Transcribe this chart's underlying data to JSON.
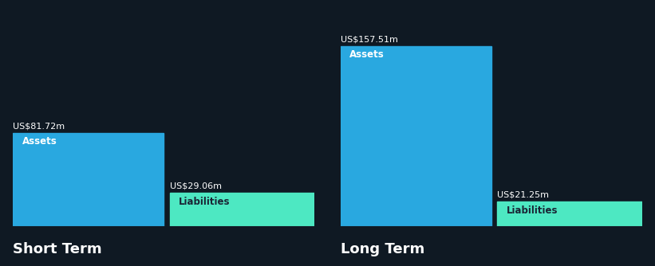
{
  "background_color": "#0f1923",
  "short_term": {
    "assets_value": 81.72,
    "assets_label": "US$81.72m",
    "assets_color": "#29a8e0",
    "liabilities_value": 29.06,
    "liabilities_label": "US$29.06m",
    "liabilities_color": "#4de8c2"
  },
  "long_term": {
    "assets_value": 157.51,
    "assets_label": "US$157.51m",
    "assets_color": "#29a8e0",
    "liabilities_value": 21.25,
    "liabilities_label": "US$21.25m",
    "liabilities_color": "#4de8c2"
  },
  "label_assets": "Assets",
  "label_liabilities": "Liabilities",
  "short_term_label": "Short Term",
  "long_term_label": "Long Term",
  "text_color_white": "#ffffff",
  "text_color_dark": "#1a2535",
  "label_fontsize": 8.5,
  "value_fontsize": 8,
  "title_fontsize": 13,
  "max_value": 170,
  "baseline_color": "#3a4555",
  "baseline_lw": 0.8
}
